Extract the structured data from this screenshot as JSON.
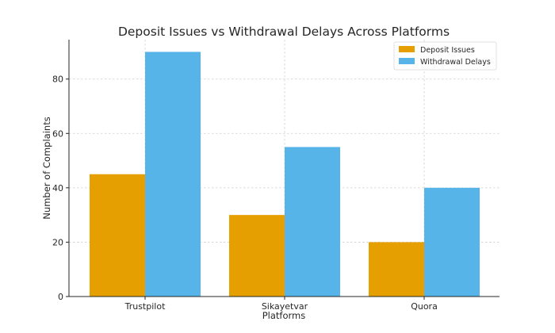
{
  "chart_data": {
    "type": "bar",
    "title": "Deposit Issues vs Withdrawal Delays Across Platforms",
    "xlabel": "Platforms",
    "ylabel": "Number of Complaints",
    "categories": [
      "Trustpilot",
      "Sikayetvar",
      "Quora"
    ],
    "series": [
      {
        "name": "Deposit Issues",
        "values": [
          45,
          30,
          20
        ],
        "color": "#E69F00"
      },
      {
        "name": "Withdrawal Delays",
        "values": [
          90,
          55,
          40
        ],
        "color": "#56B4E9"
      }
    ],
    "ylim": [
      0,
      94.5
    ],
    "yticks": [
      0,
      20,
      40,
      60,
      80
    ],
    "grid": true,
    "legend_position": "top-right"
  }
}
